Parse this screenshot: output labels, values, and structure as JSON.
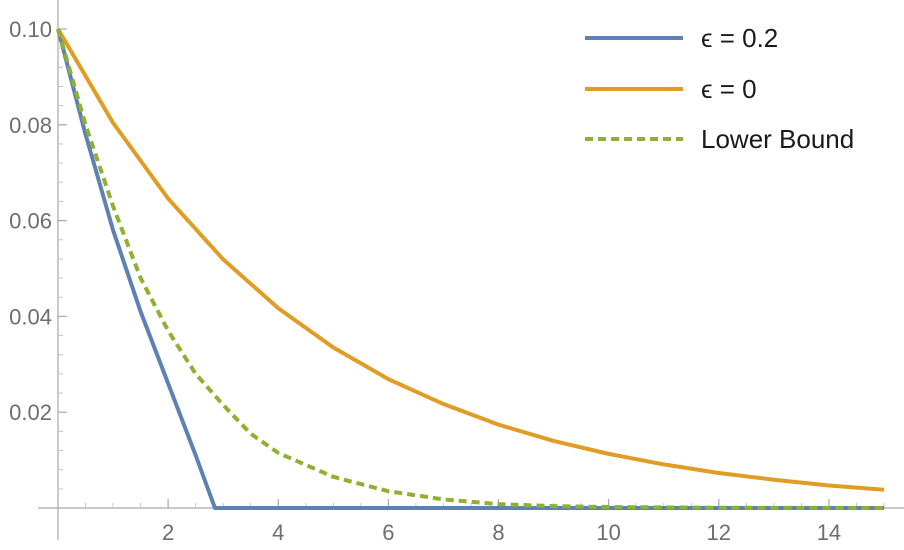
{
  "chart_data": {
    "type": "line",
    "title": "",
    "xlabel": "",
    "ylabel": "",
    "xlim": [
      0,
      15
    ],
    "ylim": [
      0,
      0.1
    ],
    "grid": false,
    "legend_position": "top-right",
    "x_ticks": [
      2,
      4,
      6,
      8,
      10,
      12,
      14
    ],
    "x_tick_labels": [
      "2",
      "4",
      "6",
      "8",
      "10",
      "12",
      "14"
    ],
    "y_ticks": [
      0.02,
      0.04,
      0.06,
      0.08,
      0.1
    ],
    "y_tick_labels": [
      "0.02",
      "0.04",
      "0.06",
      "0.08",
      "0.10"
    ],
    "series": [
      {
        "name": "ϵ = 0.2",
        "color": "#5e81b5",
        "style": "solid",
        "x": [
          0,
          0.5,
          1,
          1.5,
          2,
          2.5,
          2.85,
          3,
          4,
          6,
          8,
          10,
          12,
          15
        ],
        "y": [
          0.1,
          0.078,
          0.058,
          0.041,
          0.026,
          0.011,
          0,
          0,
          0,
          0,
          0,
          0,
          0,
          0
        ]
      },
      {
        "name": "ϵ = 0",
        "color": "#e19c24",
        "style": "solid",
        "x": [
          0,
          1,
          2,
          3,
          4,
          5,
          6,
          7,
          8,
          9,
          10,
          11,
          12,
          13,
          14,
          15
        ],
        "y": [
          0.1,
          0.0804,
          0.0646,
          0.0519,
          0.0417,
          0.0335,
          0.0269,
          0.0217,
          0.0174,
          0.014,
          0.0113,
          0.0091,
          0.0073,
          0.0059,
          0.0047,
          0.0038
        ]
      },
      {
        "name": "Lower Bound",
        "color": "#8fb032",
        "style": "dashed",
        "x": [
          0,
          0.5,
          1,
          1.5,
          2,
          2.5,
          3,
          3.5,
          4,
          5,
          6,
          7,
          8,
          9,
          10,
          12,
          15
        ],
        "y": [
          0.1,
          0.08,
          0.063,
          0.048,
          0.037,
          0.028,
          0.0215,
          0.0155,
          0.0115,
          0.0065,
          0.0035,
          0.0018,
          0.0008,
          0.0004,
          0.0002,
          5e-05,
          0.0
        ]
      }
    ]
  }
}
